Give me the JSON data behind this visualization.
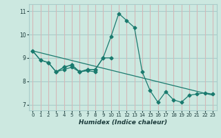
{
  "xlabel": "Humidex (Indice chaleur)",
  "background_color": "#cce8e0",
  "grid_color_h": "#a8ccca",
  "grid_color_v": "#d4b8b8",
  "line_color": "#1a7a6e",
  "xlim": [
    -0.5,
    23.5
  ],
  "ylim": [
    6.75,
    11.3
  ],
  "xticks": [
    0,
    1,
    2,
    3,
    4,
    5,
    6,
    7,
    8,
    9,
    10,
    11,
    12,
    13,
    14,
    15,
    16,
    17,
    18,
    19,
    20,
    21,
    22,
    23
  ],
  "yticks": [
    7,
    8,
    9,
    10,
    11
  ],
  "series1": [
    9.3,
    8.9,
    8.8,
    8.4,
    8.6,
    8.7,
    8.4,
    8.5,
    8.5,
    9.0,
    9.9,
    10.9,
    10.6,
    10.3,
    8.4,
    7.6,
    7.1,
    7.55,
    7.2,
    7.1,
    7.4,
    7.45,
    7.5,
    7.45
  ],
  "series2_x": [
    0,
    1,
    2,
    3,
    4,
    5,
    6,
    7,
    8,
    9,
    10
  ],
  "series2_y": [
    9.3,
    8.9,
    8.8,
    8.4,
    8.6,
    8.7,
    8.4,
    8.5,
    8.5,
    9.0,
    9.0
  ],
  "series3_x": [
    3,
    4,
    5,
    6,
    7,
    8
  ],
  "series3_y": [
    8.4,
    8.5,
    8.6,
    8.4,
    8.45,
    8.4
  ],
  "trend_x": [
    0,
    23
  ],
  "trend_y": [
    9.3,
    7.4
  ]
}
